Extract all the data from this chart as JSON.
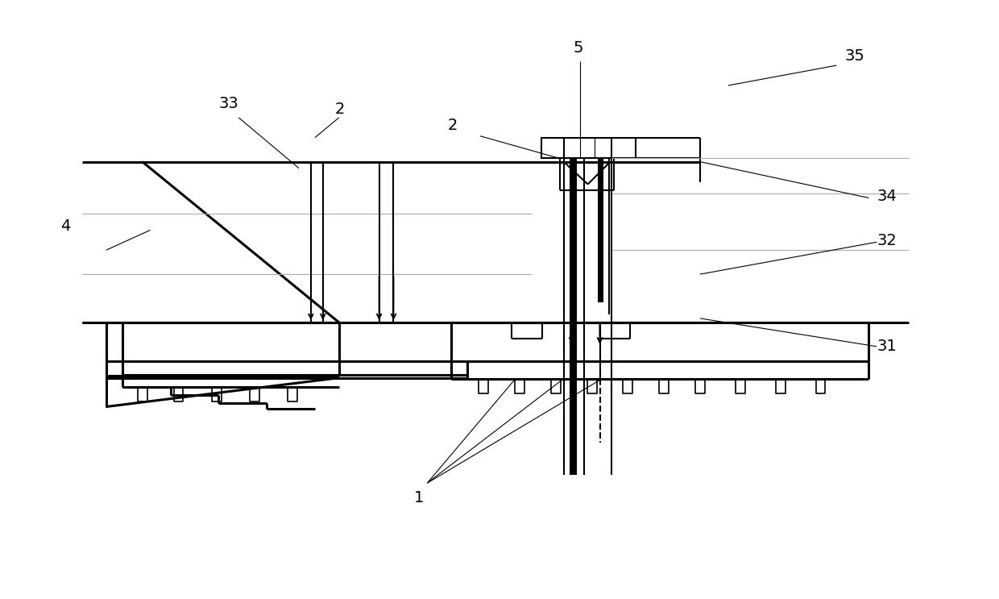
{
  "bg_color": "#ffffff",
  "lc": "#000000",
  "gc": "#aaaaaa",
  "lw_thin": 0.8,
  "lw_med": 1.5,
  "lw_thick": 2.2,
  "lw_bold": 6.0
}
